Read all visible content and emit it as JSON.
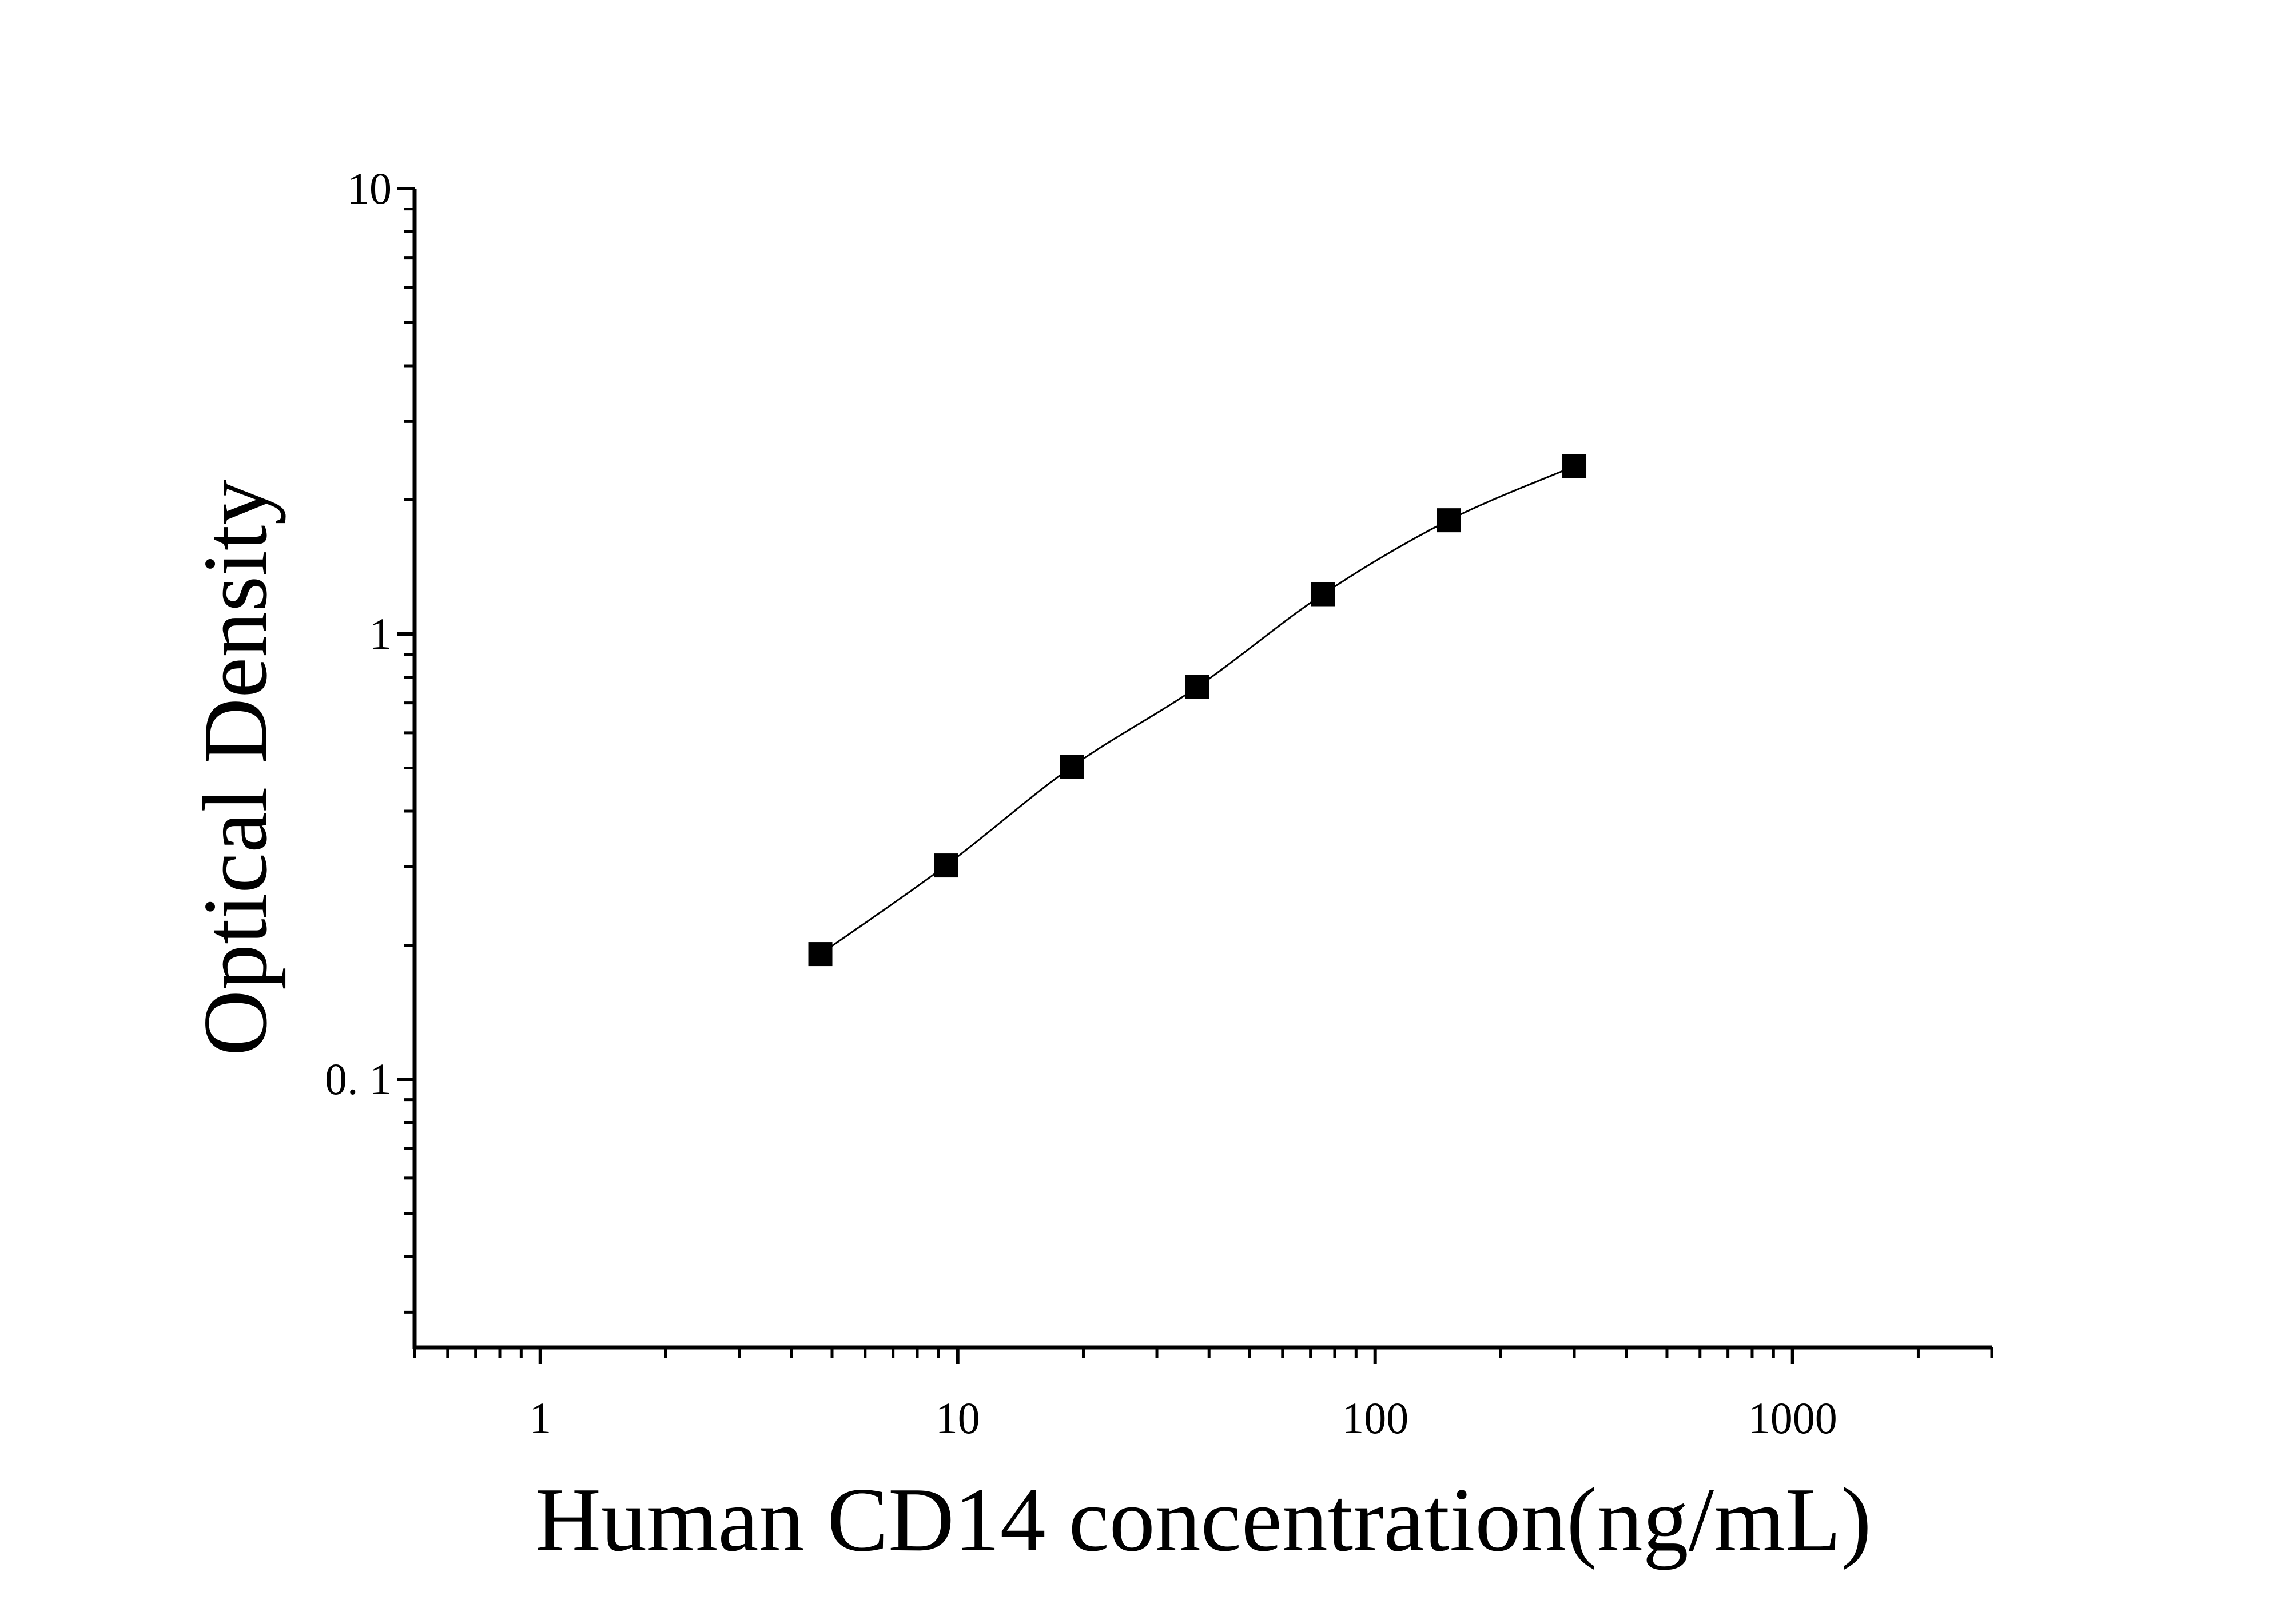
{
  "chart_data": {
    "type": "scatter",
    "xlabel": "Human CD14 concentration(ng/mL)",
    "ylabel": "Optical Density",
    "xscale": "log",
    "yscale": "log",
    "xlim": [
      0.5,
      3000
    ],
    "ylim": [
      0.025,
      10
    ],
    "x_ticks": [
      1,
      10,
      100,
      1000
    ],
    "x_tick_labels": [
      "1",
      "10",
      "100",
      "1000"
    ],
    "y_ticks": [
      0.1,
      1,
      10
    ],
    "y_tick_labels": [
      "0. 1",
      "1",
      "10"
    ],
    "grid": false,
    "marker": "square",
    "fit_line": true,
    "color": "#000000",
    "series": [
      {
        "x": [
          4.6875,
          9.375,
          18.75,
          37.5,
          75,
          150,
          300
        ],
        "y": [
          0.191,
          0.302,
          0.503,
          0.76,
          1.228,
          1.8,
          2.38
        ]
      }
    ]
  }
}
